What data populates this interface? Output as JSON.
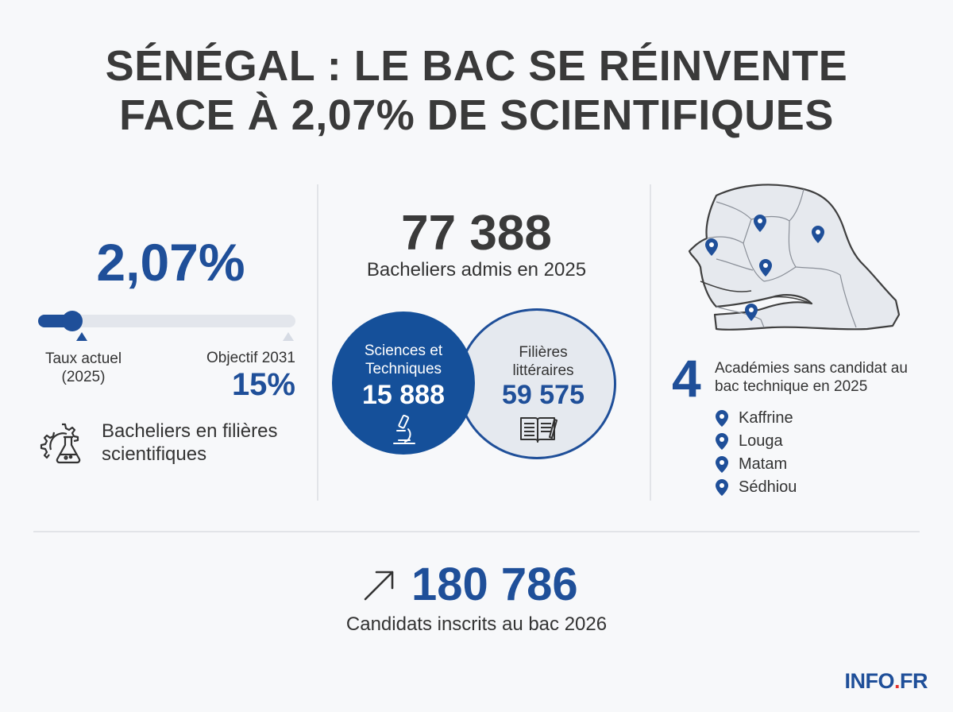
{
  "title": {
    "line1": "SÉNÉGAL : LE BAC SE RÉINVENTE",
    "line2": "FACE À 2,07% DE SCIENTIFIQUES"
  },
  "science_rate": {
    "value_text": "2,07%",
    "progress_current_pct": 2.07,
    "progress_goal_pct": 15,
    "current_label": "Taux actuel (2025)",
    "goal_label": "Objectif 2031",
    "goal_value": "15%",
    "description": "Bacheliers en filières scientifiques",
    "icon": "gear-flask-icon"
  },
  "admitted": {
    "total": "77 388",
    "label": "Bacheliers admis en 2025",
    "science": {
      "label": "Sciences et Techniques",
      "value": "15 888",
      "icon": "microscope-icon"
    },
    "literary": {
      "label": "Filières littéraires",
      "value": "59 575",
      "icon": "book-icon"
    }
  },
  "academies": {
    "count": "4",
    "label": "Académies sans candidat au bac technique en 2025",
    "items": [
      "Kaffrine",
      "Louga",
      "Matam",
      "Sédhiou"
    ],
    "map_icon": "senegal-map"
  },
  "candidates": {
    "value": "180 786",
    "label": "Candidats inscrits au bac 2026",
    "icon": "trend-up-arrow-icon"
  },
  "brand": {
    "main": "INFO",
    "dot": ".",
    "tld": "FR"
  },
  "colors": {
    "accent": "#1f4f99",
    "dark_text": "#3a3a3a",
    "brand_dot": "#e5322d",
    "light_fill": "#e5e9ef"
  }
}
